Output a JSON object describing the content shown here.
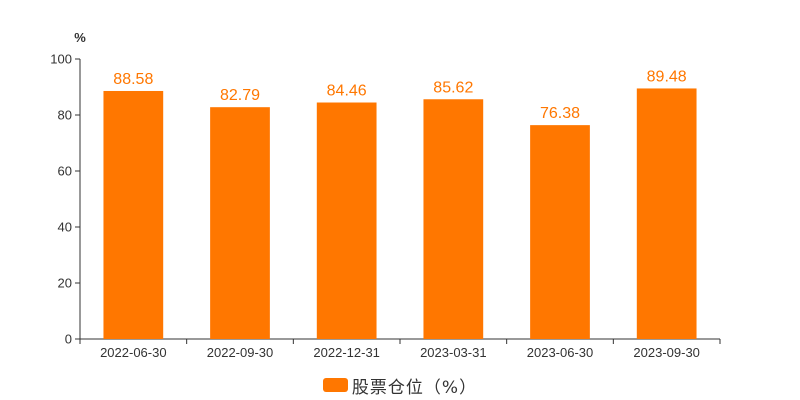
{
  "chart_data": {
    "type": "bar",
    "unit_label": "%",
    "categories": [
      "2022-06-30",
      "2022-09-30",
      "2022-12-31",
      "2023-03-31",
      "2023-06-30",
      "2023-09-30"
    ],
    "series": [
      {
        "name": "股票仓位（%）",
        "values": [
          88.58,
          82.79,
          84.46,
          85.62,
          76.38,
          89.48
        ],
        "value_labels": [
          "88.58",
          "82.79",
          "84.46",
          "85.62",
          "76.38",
          "89.48"
        ],
        "color": "#ff7700"
      }
    ],
    "ylim": [
      0,
      100
    ],
    "yticks": [
      0,
      20,
      40,
      60,
      80,
      100
    ],
    "ytick_labels": [
      "0",
      "20",
      "40",
      "60",
      "80",
      "100"
    ],
    "grid": false,
    "legend_position": "bottom-center",
    "axis_color": "#333333"
  }
}
